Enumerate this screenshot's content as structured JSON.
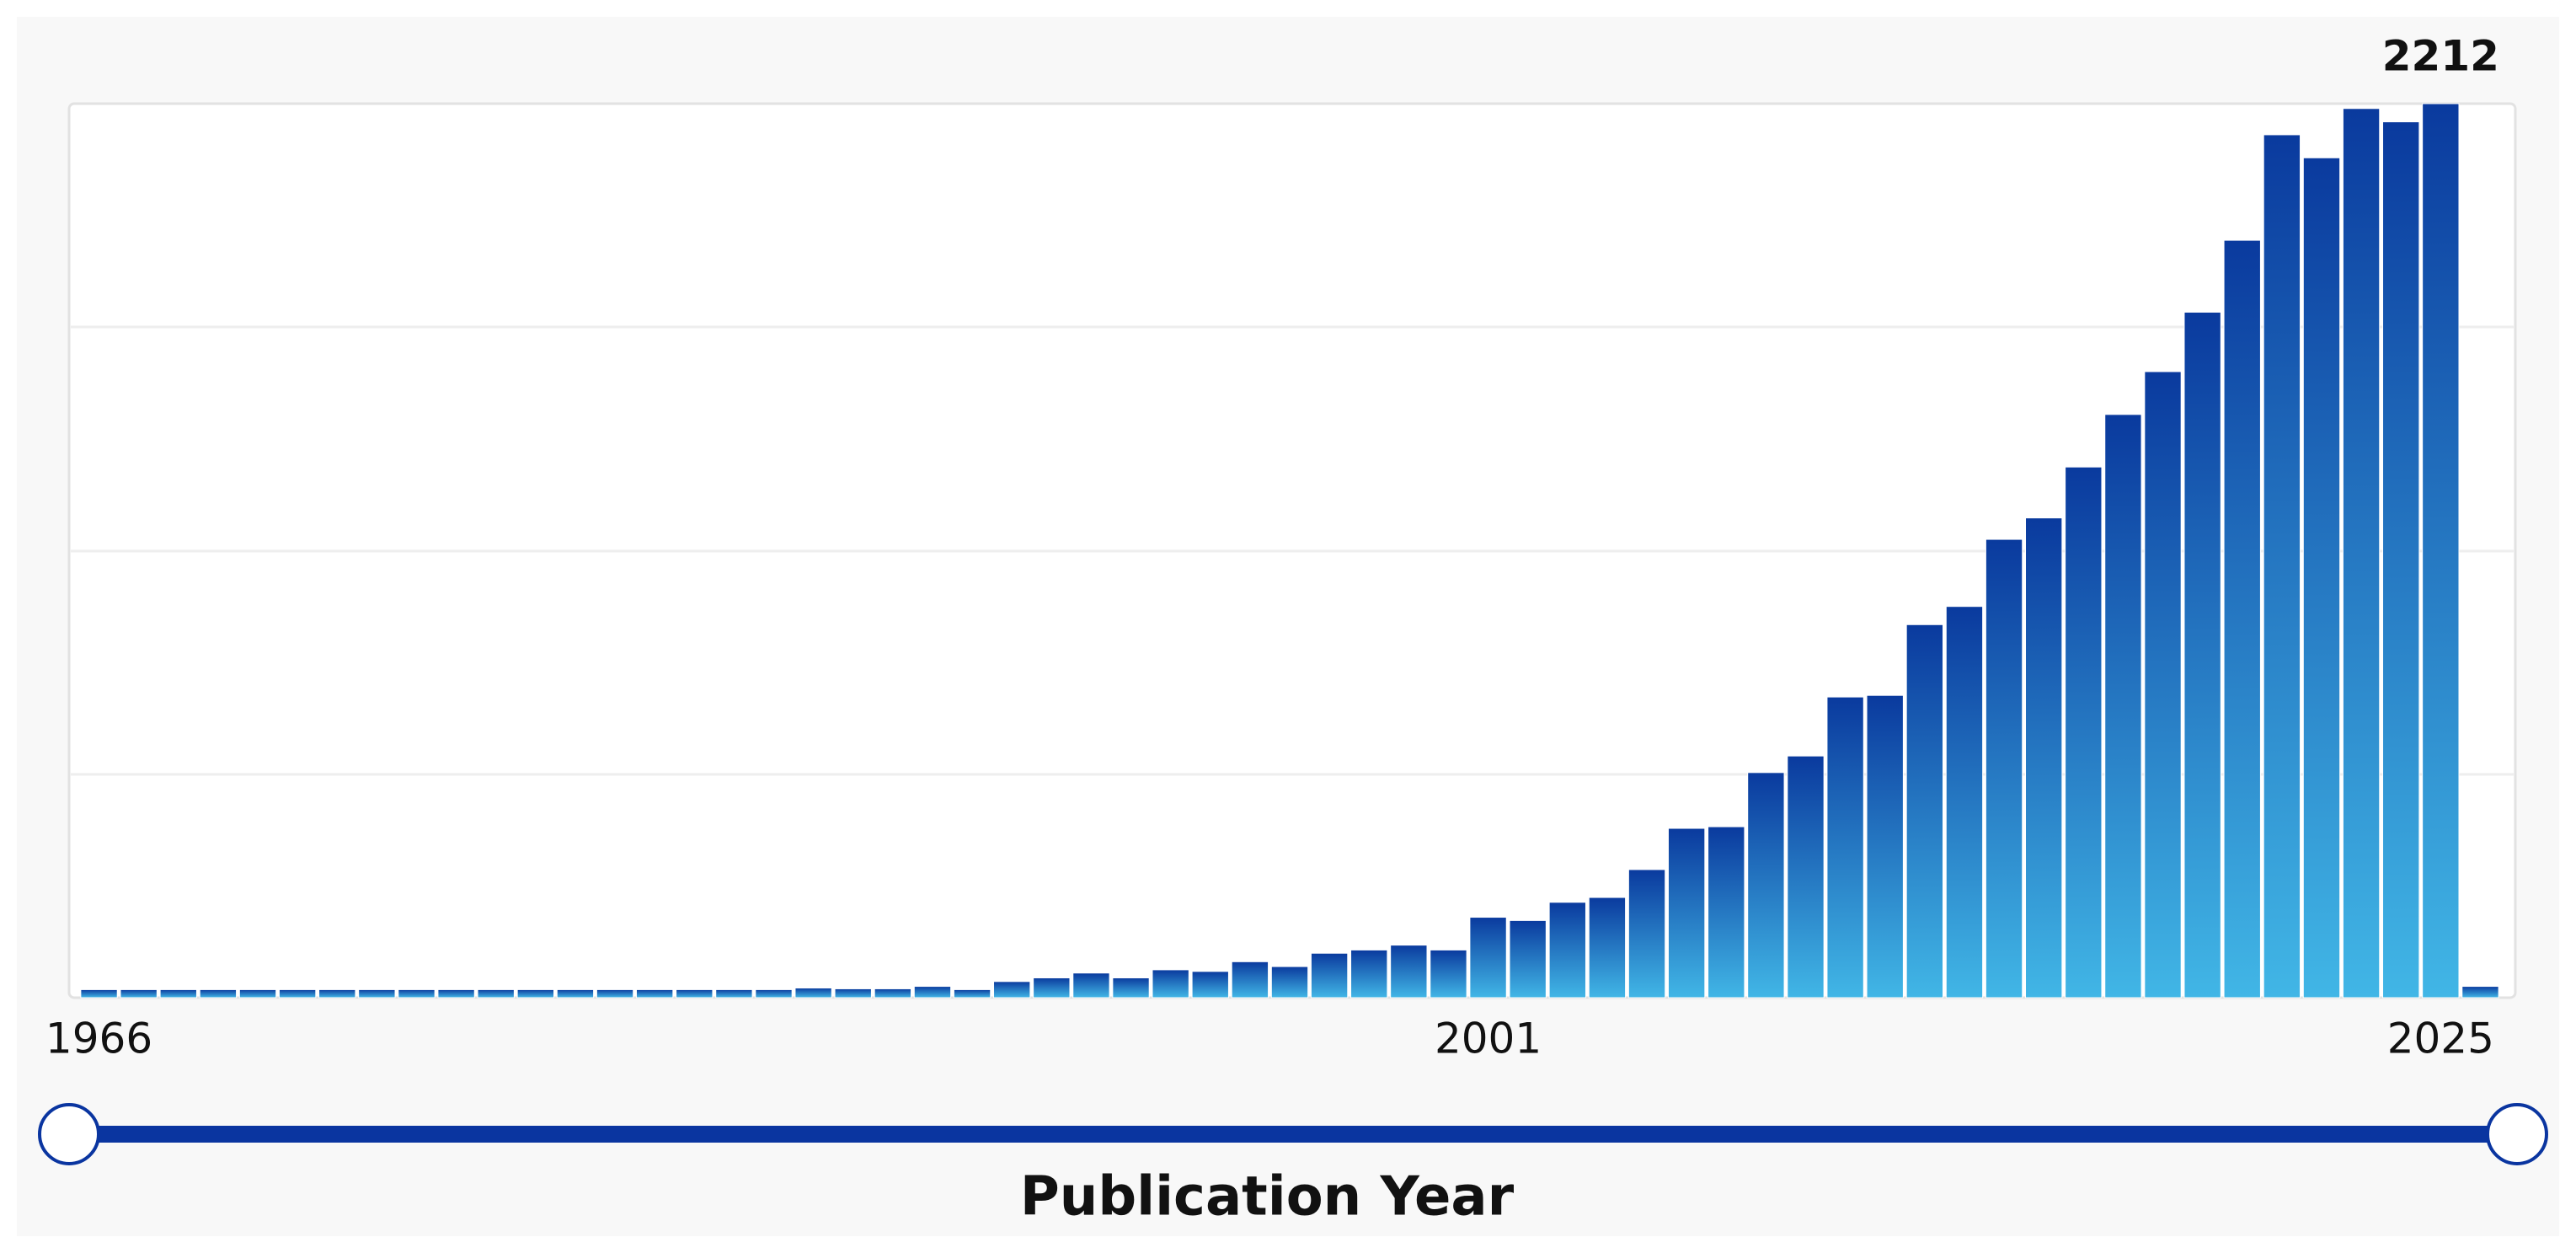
{
  "chart_data": {
    "type": "bar",
    "x_label": "Publication Year",
    "categories": [
      "1966",
      null,
      null,
      null,
      null,
      null,
      null,
      null,
      null,
      null,
      null,
      null,
      null,
      null,
      null,
      null,
      null,
      null,
      null,
      null,
      null,
      null,
      null,
      null,
      null,
      null,
      null,
      null,
      null,
      null,
      null,
      null,
      null,
      null,
      null,
      "2001",
      null,
      null,
      null,
      null,
      null,
      null,
      null,
      null,
      null,
      null,
      null,
      null,
      null,
      null,
      null,
      null,
      null,
      null,
      null,
      null,
      null,
      null,
      null,
      "2025",
      null
    ],
    "values": [
      20,
      20,
      20,
      20,
      20,
      20,
      20,
      20,
      20,
      20,
      20,
      20,
      20,
      20,
      20,
      20,
      20,
      20,
      24,
      22,
      22,
      28,
      20,
      40,
      49,
      61,
      49,
      69,
      65,
      89,
      77,
      110,
      118,
      130,
      118,
      199,
      191,
      236,
      248,
      317,
      419,
      423,
      557,
      598,
      744,
      748,
      923,
      968,
      1134,
      1187,
      1313,
      1443,
      1549,
      1696,
      1874,
      2135,
      2078,
      2200,
      2167,
      2212,
      28
    ],
    "ylim": [
      0,
      2212
    ],
    "color_top": "#0a3a9e",
    "color_bottom": "#41b6e6"
  }
}
